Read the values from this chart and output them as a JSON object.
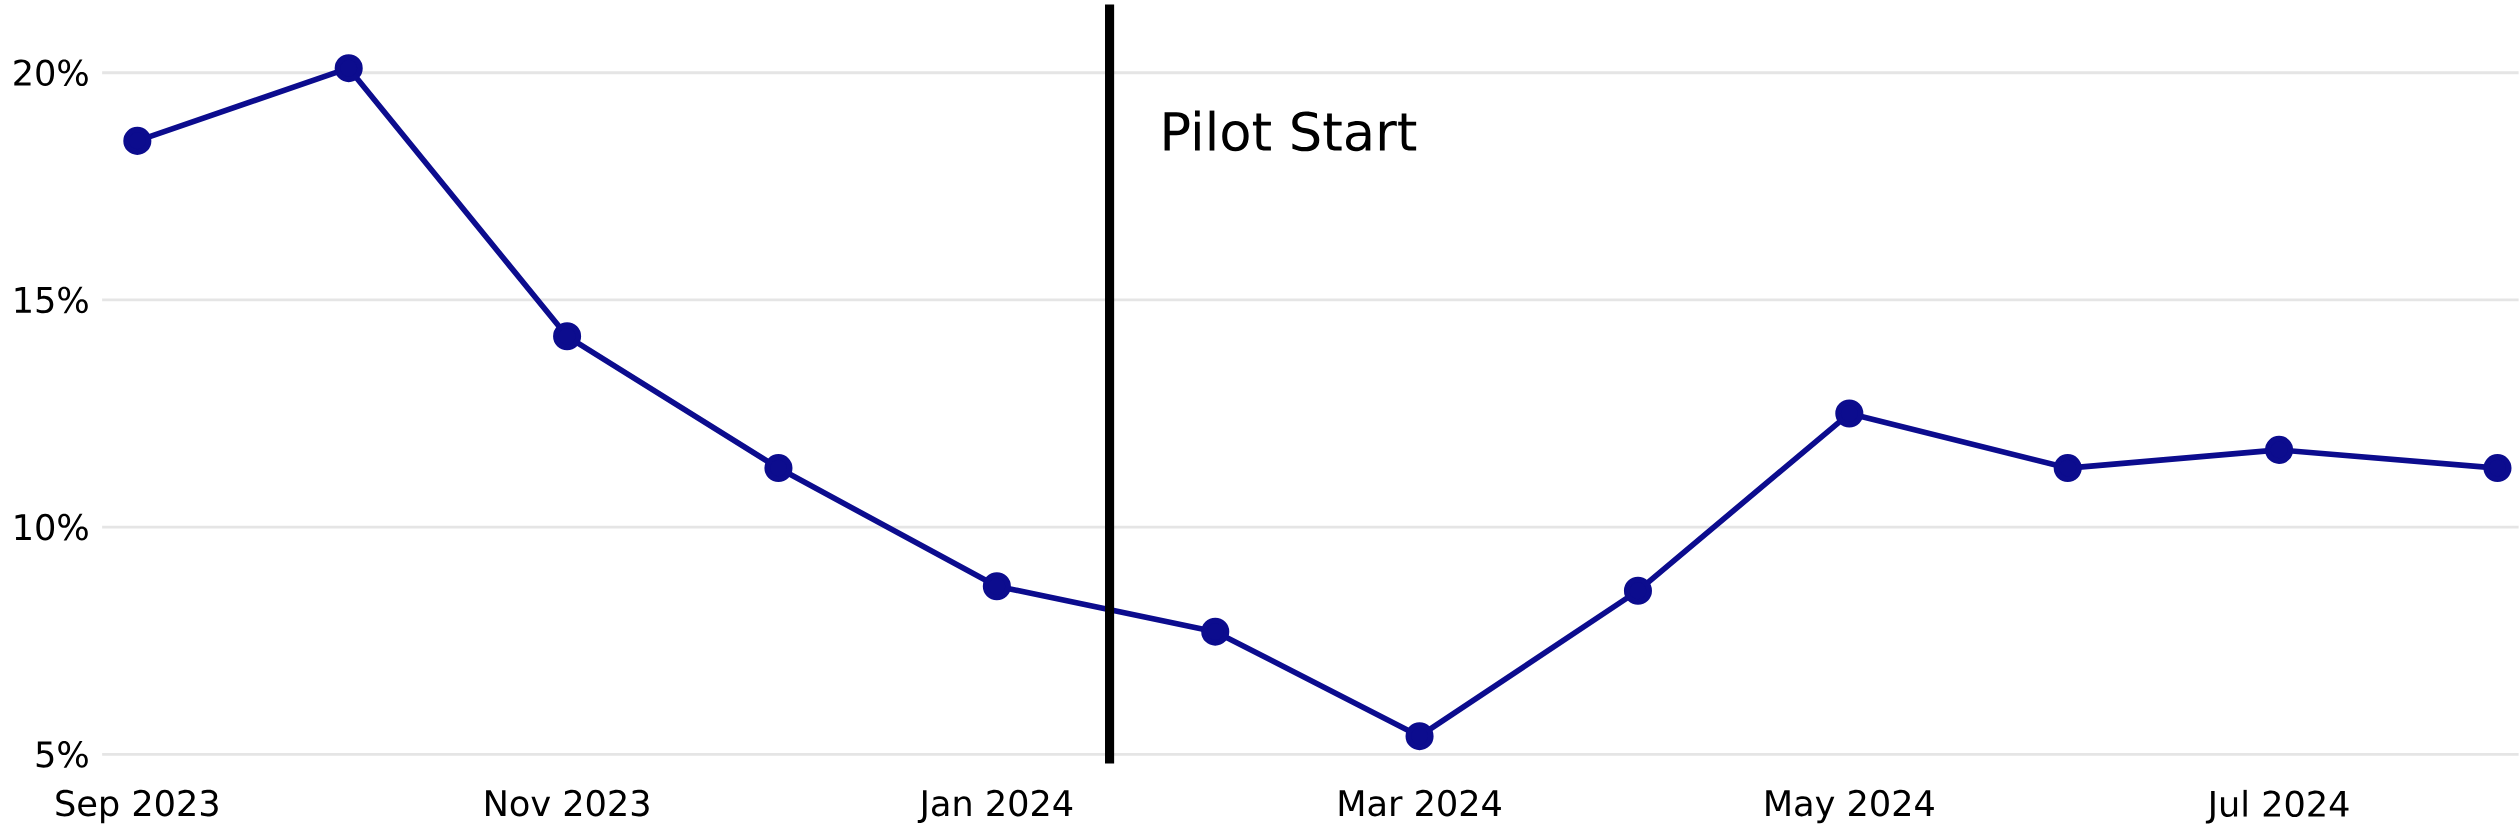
{
  "chart_data": {
    "type": "line",
    "x": [
      "2023-09",
      "2023-10",
      "2023-11",
      "2023-12",
      "2024-01",
      "2024-02",
      "2024-03",
      "2024-04",
      "2024-05",
      "2024-06",
      "2024-07",
      "2024-08"
    ],
    "series": [
      {
        "color": "#0c0c8e",
        "values": [
          18.5,
          20.1,
          14.2,
          11.3,
          8.7,
          7.7,
          5.4,
          8.6,
          12.5,
          11.3,
          11.7,
          11.3
        ]
      }
    ],
    "xlim": [
      "2023-08-27",
      "2024-08-04"
    ],
    "xticks": [
      {
        "value": "2023-09",
        "label": "Sep 2023"
      },
      {
        "value": "2023-11",
        "label": "Nov 2023"
      },
      {
        "value": "2024-01",
        "label": "Jan 2024"
      },
      {
        "value": "2024-03",
        "label": "Mar 2024"
      },
      {
        "value": "2024-05",
        "label": "May 2024"
      },
      {
        "value": "2024-07",
        "label": "Jul 2024"
      }
    ],
    "ylim": [
      4.8,
      21.5
    ],
    "yticks": [
      {
        "value": 5,
        "label": "5%"
      },
      {
        "value": 10,
        "label": "10%"
      },
      {
        "value": 15,
        "label": "15%"
      },
      {
        "value": 20,
        "label": "20%"
      }
    ],
    "ref_lines": [
      {
        "axis": "x",
        "value": "2024-01-17",
        "label": "Pilot Start",
        "color": "#000000"
      }
    ],
    "grid": "y",
    "marker": "circle",
    "line_style": "solid"
  }
}
